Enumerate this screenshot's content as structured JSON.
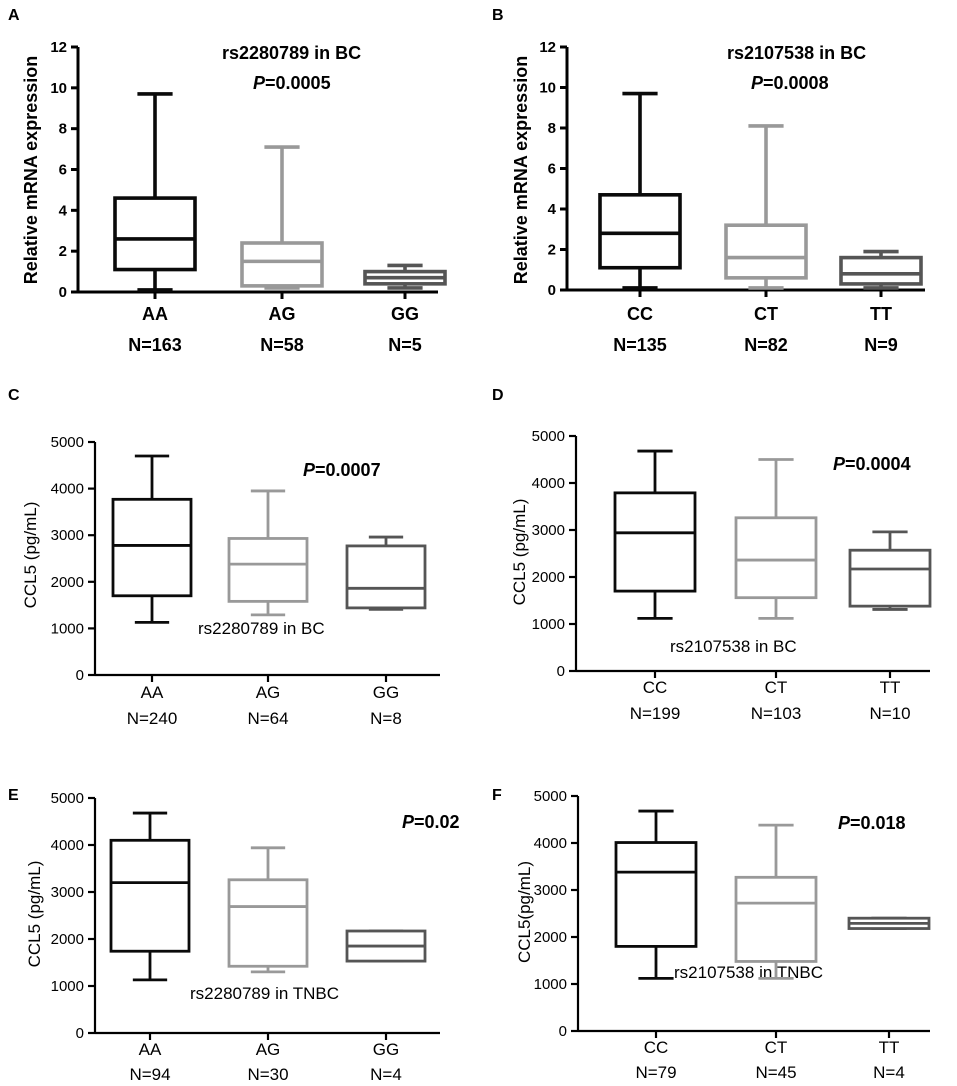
{
  "colors": {
    "dark": "#0a0a0a",
    "light": "#999999",
    "mid": "#555555"
  },
  "chart_data": [
    {
      "id": "A",
      "letter": "A",
      "type": "box",
      "title": "rs2280789 in BC",
      "p_prefix": "P",
      "p_value": "=0.0005",
      "ylabel": "Relative mRNA expression",
      "ylim": [
        0,
        12
      ],
      "yticks": [
        "0",
        "2",
        "4",
        "6",
        "8",
        "10",
        "12"
      ],
      "groups": [
        {
          "label": "AA",
          "n": "N=163",
          "color": "dark",
          "min": 0.1,
          "q1": 1.1,
          "median": 2.6,
          "q3": 4.6,
          "max": 9.7
        },
        {
          "label": "AG",
          "n": "N=58",
          "color": "light",
          "min": 0.2,
          "q1": 0.3,
          "median": 1.5,
          "q3": 2.4,
          "max": 7.1
        },
        {
          "label": "GG",
          "n": "N=5",
          "color": "mid",
          "min": 0.2,
          "q1": 0.4,
          "median": 0.7,
          "q3": 1.0,
          "max": 1.3
        }
      ]
    },
    {
      "id": "B",
      "letter": "B",
      "type": "box",
      "title": "rs2107538 in BC",
      "p_prefix": "P",
      "p_value": "=0.0008",
      "ylabel": "Relative mRNA expression",
      "ylim": [
        0,
        12
      ],
      "yticks": [
        "0",
        "2",
        "4",
        "6",
        "8",
        "10",
        "12"
      ],
      "groups": [
        {
          "label": "CC",
          "n": "N=135",
          "color": "dark",
          "min": 0.1,
          "q1": 1.1,
          "median": 2.8,
          "q3": 4.7,
          "max": 9.7
        },
        {
          "label": "CT",
          "n": "N=82",
          "color": "light",
          "min": 0.1,
          "q1": 0.6,
          "median": 1.6,
          "q3": 3.2,
          "max": 8.1
        },
        {
          "label": "TT",
          "n": "N=9",
          "color": "mid",
          "min": 0.1,
          "q1": 0.3,
          "median": 0.8,
          "q3": 1.6,
          "max": 1.9
        }
      ]
    },
    {
      "id": "C",
      "letter": "C",
      "type": "box",
      "title": "rs2280789 in BC",
      "p_prefix": "P",
      "p_value": "=0.0007",
      "ylabel": "CCL5 (pg/mL)",
      "ylim": [
        0,
        5000
      ],
      "yticks": [
        "0",
        "1000",
        "2000",
        "3000",
        "4000",
        "5000"
      ],
      "groups": [
        {
          "label": "AA",
          "n": "N=240",
          "color": "dark",
          "min": 1130,
          "q1": 1700,
          "median": 2780,
          "q3": 3770,
          "max": 4700
        },
        {
          "label": "AG",
          "n": "N=64",
          "color": "light",
          "min": 1290,
          "q1": 1580,
          "median": 2380,
          "q3": 2930,
          "max": 3950
        },
        {
          "label": "GG",
          "n": "N=8",
          "color": "mid",
          "min": 1410,
          "q1": 1440,
          "median": 1860,
          "q3": 2770,
          "max": 2960
        }
      ]
    },
    {
      "id": "D",
      "letter": "D",
      "type": "box",
      "title": "rs2107538 in BC",
      "p_prefix": "P",
      "p_value": "=0.0004",
      "ylabel": "CCL5 (pg/mL)",
      "ylim": [
        0,
        5000
      ],
      "yticks": [
        "0",
        "1000",
        "2000",
        "3000",
        "4000",
        "5000"
      ],
      "groups": [
        {
          "label": "CC",
          "n": "N=199",
          "color": "dark",
          "min": 1120,
          "q1": 1700,
          "median": 2940,
          "q3": 3790,
          "max": 4680
        },
        {
          "label": "CT",
          "n": "N=103",
          "color": "light",
          "min": 1120,
          "q1": 1560,
          "median": 2360,
          "q3": 3260,
          "max": 4500
        },
        {
          "label": "TT",
          "n": "N=10",
          "color": "mid",
          "min": 1310,
          "q1": 1380,
          "median": 2170,
          "q3": 2570,
          "max": 2960
        }
      ]
    },
    {
      "id": "E",
      "letter": "E",
      "type": "box",
      "title": "rs2280789 in TNBC",
      "p_prefix": "P",
      "p_value": "=0.02",
      "ylabel": "CCL5 (pg/mL)",
      "ylim": [
        0,
        5000
      ],
      "yticks": [
        "0",
        "1000",
        "2000",
        "3000",
        "4000",
        "5000"
      ],
      "groups": [
        {
          "label": "AA",
          "n": "N=94",
          "color": "dark",
          "min": 1130,
          "q1": 1740,
          "median": 3200,
          "q3": 4100,
          "max": 4680
        },
        {
          "label": "AG",
          "n": "N=30",
          "color": "light",
          "min": 1300,
          "q1": 1420,
          "median": 2690,
          "q3": 3260,
          "max": 3940
        },
        {
          "label": "GG",
          "n": "N=4",
          "color": "mid",
          "min": 1530,
          "q1": 1530,
          "median": 1850,
          "q3": 2170,
          "max": 2170
        }
      ]
    },
    {
      "id": "F",
      "letter": "F",
      "type": "box",
      "title": "rs2107538 in TNBC",
      "p_prefix": "P",
      "p_value": "=0.018",
      "ylabel": "CCL5(pg/mL)",
      "ylim": [
        0,
        5000
      ],
      "yticks": [
        "0",
        "1000",
        "2000",
        "3000",
        "4000",
        "5000"
      ],
      "groups": [
        {
          "label": "CC",
          "n": "N=79",
          "color": "dark",
          "min": 1120,
          "q1": 1800,
          "median": 3380,
          "q3": 4010,
          "max": 4680
        },
        {
          "label": "CT",
          "n": "N=45",
          "color": "light",
          "min": 1120,
          "q1": 1480,
          "median": 2720,
          "q3": 3270,
          "max": 4380
        },
        {
          "label": "TT",
          "n": "N=4",
          "color": "mid",
          "min": 2180,
          "q1": 2180,
          "median": 2290,
          "q3": 2400,
          "max": 2400
        }
      ]
    }
  ]
}
